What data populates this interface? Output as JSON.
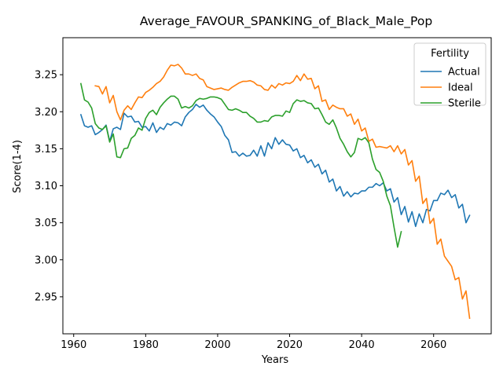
{
  "chart_data": {
    "type": "line",
    "title": "Average_FAVOUR_SPANKING_of_Black_Male_Pop",
    "xlabel": "Years",
    "ylabel": "Score(1-4)",
    "xlim": [
      1957,
      2076
    ],
    "ylim": [
      2.9,
      3.3
    ],
    "xticks": [
      1960,
      1980,
      2000,
      2020,
      2040,
      2060
    ],
    "yticks": [
      2.95,
      3.0,
      3.05,
      3.1,
      3.15,
      3.2,
      3.25
    ],
    "grid": false,
    "legend": {
      "title": "Fertility",
      "placement": "top-right"
    },
    "series": [
      {
        "name": "Actual",
        "color": "#1f77b4",
        "x": [
          1962,
          1963,
          1964,
          1965,
          1966,
          1967,
          1968,
          1969,
          1970,
          1971,
          1972,
          1973,
          1974,
          1975,
          1976,
          1977,
          1978,
          1979,
          1980,
          1981,
          1982,
          1983,
          1984,
          1985,
          1986,
          1987,
          1988,
          1989,
          1990,
          1991,
          1992,
          1993,
          1994,
          1995,
          1996,
          1997,
          1998,
          1999,
          2000,
          2001,
          2002,
          2003,
          2004,
          2005,
          2006,
          2007,
          2008,
          2009,
          2010,
          2011,
          2012,
          2013,
          2014,
          2015,
          2016,
          2017,
          2018,
          2019,
          2020,
          2021,
          2022,
          2023,
          2024,
          2025,
          2026,
          2027,
          2028,
          2029,
          2030,
          2031,
          2032,
          2033,
          2034,
          2035,
          2036,
          2037,
          2038,
          2039,
          2040,
          2041,
          2042,
          2043,
          2044,
          2045,
          2046,
          2047,
          2048,
          2049,
          2050,
          2051,
          2052,
          2053,
          2054,
          2055,
          2056,
          2057,
          2058,
          2059,
          2060,
          2061,
          2062,
          2063,
          2064,
          2065,
          2066,
          2067,
          2068,
          2069,
          2070
        ],
        "values": [
          3.196,
          3.181,
          3.179,
          3.181,
          3.169,
          3.172,
          3.176,
          3.182,
          3.16,
          3.177,
          3.179,
          3.176,
          3.198,
          3.193,
          3.194,
          3.186,
          3.187,
          3.179,
          3.18,
          3.174,
          3.185,
          3.172,
          3.179,
          3.176,
          3.184,
          3.182,
          3.186,
          3.185,
          3.181,
          3.193,
          3.199,
          3.203,
          3.21,
          3.206,
          3.209,
          3.202,
          3.197,
          3.193,
          3.186,
          3.18,
          3.168,
          3.162,
          3.145,
          3.146,
          3.14,
          3.144,
          3.14,
          3.141,
          3.148,
          3.14,
          3.154,
          3.14,
          3.158,
          3.15,
          3.165,
          3.156,
          3.162,
          3.156,
          3.155,
          3.147,
          3.15,
          3.138,
          3.141,
          3.131,
          3.135,
          3.125,
          3.129,
          3.116,
          3.121,
          3.105,
          3.109,
          3.093,
          3.099,
          3.086,
          3.092,
          3.085,
          3.09,
          3.089,
          3.093,
          3.093,
          3.098,
          3.098,
          3.103,
          3.1,
          3.104,
          3.093,
          3.096,
          3.078,
          3.084,
          3.061,
          3.072,
          3.051,
          3.065,
          3.045,
          3.062,
          3.05,
          3.068,
          3.066,
          3.08,
          3.08,
          3.09,
          3.088,
          3.094,
          3.084,
          3.088,
          3.07,
          3.075,
          3.05,
          3.06
        ]
      },
      {
        "name": "Ideal",
        "color": "#ff7f0e",
        "x": [
          1966,
          1967,
          1968,
          1969,
          1970,
          1971,
          1972,
          1973,
          1974,
          1975,
          1976,
          1977,
          1978,
          1979,
          1980,
          1981,
          1982,
          1983,
          1984,
          1985,
          1986,
          1987,
          1988,
          1989,
          1990,
          1991,
          1992,
          1993,
          1994,
          1995,
          1996,
          1997,
          1998,
          1999,
          2000,
          2001,
          2002,
          2003,
          2004,
          2005,
          2006,
          2007,
          2008,
          2009,
          2010,
          2011,
          2012,
          2013,
          2014,
          2015,
          2016,
          2017,
          2018,
          2019,
          2020,
          2021,
          2022,
          2023,
          2024,
          2025,
          2026,
          2027,
          2028,
          2029,
          2030,
          2031,
          2032,
          2033,
          2034,
          2035,
          2036,
          2037,
          2038,
          2039,
          2040,
          2041,
          2042,
          2043,
          2044,
          2045,
          2046,
          2047,
          2048,
          2049,
          2050,
          2051,
          2052,
          2053,
          2054,
          2055,
          2056,
          2057,
          2058,
          2059,
          2060,
          2061,
          2062,
          2063,
          2064,
          2065,
          2066,
          2067,
          2068,
          2069,
          2070
        ],
        "values": [
          3.235,
          3.234,
          3.224,
          3.234,
          3.212,
          3.222,
          3.2,
          3.189,
          3.202,
          3.208,
          3.203,
          3.212,
          3.22,
          3.219,
          3.226,
          3.229,
          3.233,
          3.238,
          3.241,
          3.247,
          3.256,
          3.263,
          3.262,
          3.264,
          3.259,
          3.251,
          3.251,
          3.249,
          3.251,
          3.245,
          3.243,
          3.234,
          3.232,
          3.23,
          3.231,
          3.232,
          3.23,
          3.229,
          3.233,
          3.236,
          3.239,
          3.241,
          3.241,
          3.242,
          3.24,
          3.236,
          3.235,
          3.23,
          3.229,
          3.236,
          3.232,
          3.238,
          3.236,
          3.239,
          3.238,
          3.241,
          3.249,
          3.242,
          3.251,
          3.244,
          3.245,
          3.231,
          3.235,
          3.214,
          3.216,
          3.203,
          3.209,
          3.206,
          3.204,
          3.204,
          3.194,
          3.197,
          3.183,
          3.19,
          3.174,
          3.178,
          3.16,
          3.163,
          3.152,
          3.153,
          3.152,
          3.151,
          3.154,
          3.146,
          3.154,
          3.143,
          3.149,
          3.128,
          3.134,
          3.106,
          3.113,
          3.076,
          3.083,
          3.049,
          3.056,
          3.021,
          3.028,
          3.005,
          2.998,
          2.991,
          2.973,
          2.976,
          2.947,
          2.958,
          2.921
        ]
      },
      {
        "name": "Sterile",
        "color": "#2ca02c",
        "x": [
          1962,
          1963,
          1964,
          1965,
          1966,
          1967,
          1968,
          1969,
          1970,
          1971,
          1972,
          1973,
          1974,
          1975,
          1976,
          1977,
          1978,
          1979,
          1980,
          1981,
          1982,
          1983,
          1984,
          1985,
          1986,
          1987,
          1988,
          1989,
          1990,
          1991,
          1992,
          1993,
          1994,
          1995,
          1996,
          1997,
          1998,
          1999,
          2000,
          2001,
          2002,
          2003,
          2004,
          2005,
          2006,
          2007,
          2008,
          2009,
          2010,
          2011,
          2012,
          2013,
          2014,
          2015,
          2016,
          2017,
          2018,
          2019,
          2020,
          2021,
          2022,
          2023,
          2024,
          2025,
          2026,
          2027,
          2028,
          2029,
          2030,
          2031,
          2032,
          2033,
          2034,
          2035,
          2036,
          2037,
          2038,
          2039,
          2040,
          2041,
          2042,
          2043,
          2044,
          2045,
          2046,
          2047,
          2048,
          2049,
          2050,
          2051
        ],
        "values": [
          3.238,
          3.216,
          3.213,
          3.205,
          3.184,
          3.178,
          3.176,
          3.181,
          3.159,
          3.17,
          3.139,
          3.138,
          3.15,
          3.151,
          3.164,
          3.168,
          3.178,
          3.175,
          3.191,
          3.199,
          3.202,
          3.196,
          3.206,
          3.212,
          3.217,
          3.221,
          3.221,
          3.217,
          3.205,
          3.207,
          3.205,
          3.208,
          3.215,
          3.218,
          3.217,
          3.218,
          3.22,
          3.22,
          3.219,
          3.217,
          3.21,
          3.203,
          3.202,
          3.204,
          3.202,
          3.199,
          3.199,
          3.194,
          3.191,
          3.186,
          3.186,
          3.188,
          3.187,
          3.193,
          3.195,
          3.195,
          3.194,
          3.201,
          3.199,
          3.211,
          3.216,
          3.214,
          3.215,
          3.212,
          3.211,
          3.204,
          3.205,
          3.196,
          3.186,
          3.183,
          3.189,
          3.178,
          3.164,
          3.156,
          3.146,
          3.139,
          3.145,
          3.164,
          3.162,
          3.165,
          3.158,
          3.136,
          3.122,
          3.118,
          3.106,
          3.086,
          3.073,
          3.044,
          3.017,
          3.038
        ]
      }
    ]
  }
}
